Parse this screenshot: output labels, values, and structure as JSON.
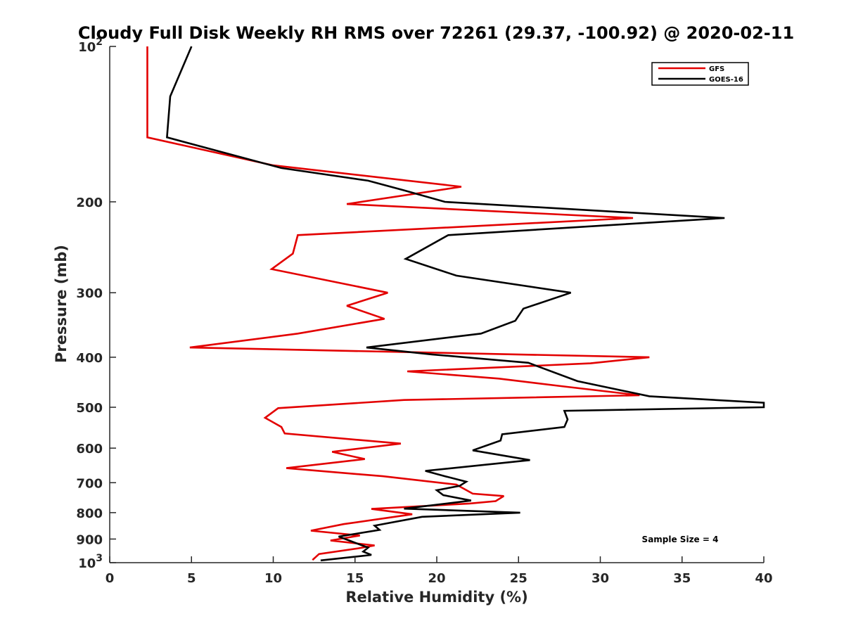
{
  "chart_data": {
    "type": "line",
    "title": "Cloudy Full Disk Weekly RH RMS over 72261 (29.37, -100.92) @ 2020-02-11",
    "xlabel": "Relative Humidity (%)",
    "ylabel": "Pressure (mb)",
    "xlim": [
      0,
      40
    ],
    "ylim": [
      100,
      1000
    ],
    "y_scale": "log",
    "y_reversed": true,
    "grid": false,
    "legend_position": "top-right",
    "x_ticks": [
      0,
      5,
      10,
      15,
      20,
      25,
      30,
      35,
      40
    ],
    "x_tick_labels": [
      "0",
      "5",
      "10",
      "15",
      "20",
      "25",
      "30",
      "35",
      "40"
    ],
    "y_ticks": [
      100,
      200,
      300,
      400,
      500,
      600,
      700,
      800,
      900,
      1000
    ],
    "y_tick_labels": [
      {
        "base": "10",
        "exp": "2"
      },
      {
        "base": "200",
        "exp": ""
      },
      {
        "base": "300",
        "exp": ""
      },
      {
        "base": "400",
        "exp": ""
      },
      {
        "base": "500",
        "exp": ""
      },
      {
        "base": "600",
        "exp": ""
      },
      {
        "base": "700",
        "exp": ""
      },
      {
        "base": "800",
        "exp": ""
      },
      {
        "base": "900",
        "exp": ""
      },
      {
        "base": "10",
        "exp": "3"
      }
    ],
    "annotation": "Sample Size = 4",
    "series": [
      {
        "name": "GFS",
        "color": "#e30000",
        "points": [
          [
            2.3,
            100
          ],
          [
            2.3,
            150
          ],
          [
            10,
            170
          ],
          [
            21.5,
            187
          ],
          [
            14.5,
            202
          ],
          [
            32,
            215
          ],
          [
            11.5,
            232
          ],
          [
            11.2,
            252
          ],
          [
            9.9,
            270
          ],
          [
            17,
            300
          ],
          [
            14.5,
            318
          ],
          [
            16.8,
            337
          ],
          [
            11.5,
            360
          ],
          [
            4.9,
            383
          ],
          [
            33,
            400
          ],
          [
            29.4,
            411
          ],
          [
            18.2,
            426
          ],
          [
            23.8,
            440
          ],
          [
            27.6,
            455
          ],
          [
            32.4,
            474
          ],
          [
            18,
            484
          ],
          [
            10.3,
            502
          ],
          [
            9.5,
            524
          ],
          [
            10.5,
            546
          ],
          [
            10.7,
            562
          ],
          [
            17.8,
            588
          ],
          [
            13.6,
            610
          ],
          [
            15.6,
            630
          ],
          [
            10.8,
            656
          ],
          [
            16.7,
            680
          ],
          [
            21.2,
            706
          ],
          [
            22.2,
            735
          ],
          [
            24.1,
            743
          ],
          [
            23.6,
            760
          ],
          [
            22,
            768
          ],
          [
            16,
            787
          ],
          [
            18.5,
            806
          ],
          [
            14.3,
            842
          ],
          [
            12.3,
            867
          ],
          [
            15.3,
            886
          ],
          [
            13.5,
            906
          ],
          [
            16.2,
            926
          ],
          [
            15.2,
            938
          ],
          [
            12.8,
            962
          ],
          [
            12.4,
            988
          ]
        ]
      },
      {
        "name": "GOES-16",
        "color": "#000000",
        "points": [
          [
            5,
            100
          ],
          [
            3.7,
            125
          ],
          [
            3.5,
            150
          ],
          [
            10.5,
            172
          ],
          [
            15.8,
            182
          ],
          [
            18,
            190
          ],
          [
            20.5,
            200
          ],
          [
            37.6,
            215
          ],
          [
            20.7,
            232
          ],
          [
            18.1,
            258
          ],
          [
            21.2,
            278
          ],
          [
            28.2,
            300
          ],
          [
            25.3,
            322
          ],
          [
            24.8,
            340
          ],
          [
            22.7,
            360
          ],
          [
            15.7,
            383
          ],
          [
            19.7,
            395
          ],
          [
            25.6,
            410
          ],
          [
            28.6,
            445
          ],
          [
            33,
            476
          ],
          [
            40,
            490
          ],
          [
            40,
            500
          ],
          [
            27.8,
            508
          ],
          [
            28,
            528
          ],
          [
            27.8,
            546
          ],
          [
            24,
            564
          ],
          [
            23.9,
            580
          ],
          [
            22.2,
            606
          ],
          [
            25.7,
            633
          ],
          [
            19.3,
            664
          ],
          [
            20.5,
            680
          ],
          [
            21.8,
            697
          ],
          [
            21.4,
            710
          ],
          [
            20,
            724
          ],
          [
            20.4,
            740
          ],
          [
            22.1,
            758
          ],
          [
            18,
            786
          ],
          [
            25.1,
            800
          ],
          [
            19.1,
            815
          ],
          [
            16.2,
            848
          ],
          [
            16.5,
            864
          ],
          [
            14,
            890
          ],
          [
            14.8,
            910
          ],
          [
            15.8,
            935
          ],
          [
            15.5,
            952
          ],
          [
            16,
            966
          ],
          [
            12.9,
            990
          ]
        ]
      }
    ]
  }
}
